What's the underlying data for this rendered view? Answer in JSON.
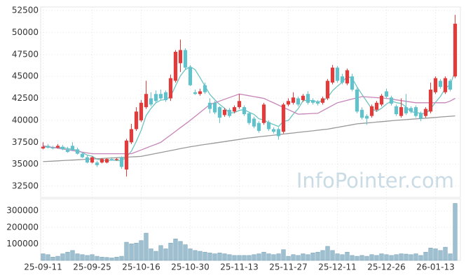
{
  "chart_data": {
    "type": "candlestick",
    "watermark": "InfoPointer.com",
    "categories": [
      "25-09-11",
      null,
      null,
      null,
      null,
      null,
      null,
      null,
      null,
      null,
      "25-09-25",
      null,
      null,
      null,
      null,
      null,
      null,
      null,
      null,
      null,
      "25-10-16",
      null,
      null,
      null,
      null,
      null,
      null,
      null,
      null,
      null,
      "25-10-30",
      null,
      null,
      null,
      null,
      null,
      null,
      null,
      null,
      null,
      "25-11-13",
      null,
      null,
      null,
      null,
      null,
      null,
      null,
      null,
      null,
      "25-11-27",
      null,
      null,
      null,
      null,
      null,
      null,
      null,
      null,
      null,
      "25-12-11",
      null,
      null,
      null,
      null,
      null,
      null,
      null,
      null,
      null,
      "25-12-26",
      null,
      null,
      null,
      null,
      null,
      null,
      null,
      null,
      null,
      "26-01-13",
      null,
      null,
      null,
      null
    ],
    "open": [
      36800,
      37100,
      36900,
      36900,
      37000,
      36700,
      37100,
      36700,
      36200,
      35800,
      35200,
      35200,
      35200,
      35200,
      35600,
      35500,
      35800,
      34400,
      37500,
      39000,
      40000,
      41500,
      42500,
      43000,
      43000,
      43200,
      42500,
      44500,
      46500,
      48000,
      46000,
      43200,
      43000,
      44000,
      42000,
      42000,
      41500,
      40600,
      41200,
      41000,
      41500,
      41500,
      40800,
      40200,
      39700,
      39700,
      39800,
      39000,
      39000,
      38700,
      41800,
      42000,
      42500,
      42300,
      43000,
      42300,
      42100,
      42000,
      42500,
      44300,
      46000,
      45000,
      44200,
      45000,
      43500,
      41200,
      40500,
      40500,
      41200,
      41800,
      43300,
      42600,
      41600,
      40500,
      41500,
      41400,
      41500,
      40800,
      40500,
      41000,
      43200,
      44500,
      43200,
      44500,
      45000
    ],
    "high": [
      37500,
      37300,
      37100,
      37300,
      37200,
      37000,
      37500,
      36900,
      36400,
      36000,
      35900,
      35400,
      35700,
      35700,
      35800,
      35700,
      35900,
      37900,
      39600,
      41500,
      42300,
      44500,
      43200,
      43400,
      43500,
      43400,
      45200,
      48000,
      49200,
      48200,
      46300,
      43500,
      43600,
      44300,
      42500,
      42200,
      41600,
      41400,
      41400,
      41700,
      43000,
      41700,
      41000,
      40400,
      39900,
      42000,
      40000,
      39200,
      39200,
      42000,
      42500,
      43200,
      42700,
      43000,
      43300,
      42500,
      42300,
      42700,
      44700,
      46300,
      46200,
      45300,
      45900,
      45300,
      43700,
      41500,
      40700,
      41800,
      42200,
      43000,
      43600,
      42800,
      41800,
      42500,
      43000,
      41600,
      41700,
      41000,
      41500,
      44300,
      45000,
      44700,
      45000,
      44700,
      52000
    ],
    "low": [
      36700,
      36800,
      36700,
      36800,
      36600,
      36300,
      36500,
      36100,
      35700,
      35100,
      35100,
      34700,
      35100,
      35100,
      35400,
      35400,
      34500,
      33600,
      37300,
      38800,
      39800,
      41300,
      41600,
      42000,
      42300,
      42100,
      42200,
      44300,
      45500,
      45800,
      43900,
      42900,
      42800,
      43000,
      40800,
      40700,
      39700,
      40400,
      40300,
      40800,
      41300,
      40500,
      39500,
      39100,
      38600,
      39500,
      38800,
      38500,
      37800,
      38500,
      41600,
      41800,
      41600,
      42100,
      41800,
      41800,
      41700,
      41800,
      42300,
      44100,
      44300,
      44100,
      44000,
      43300,
      40800,
      40100,
      39500,
      40300,
      41000,
      41600,
      42500,
      41700,
      40500,
      40300,
      40600,
      40800,
      40300,
      39900,
      40300,
      40800,
      43000,
      43600,
      43000,
      43300,
      44800
    ],
    "close": [
      37000,
      36900,
      36800,
      37100,
      36700,
      36400,
      36600,
      36200,
      35800,
      35200,
      35800,
      34900,
      35600,
      35600,
      35500,
      35600,
      34700,
      37700,
      39000,
      41000,
      42000,
      43000,
      41800,
      42200,
      42500,
      42300,
      44800,
      47800,
      48000,
      46000,
      44000,
      43000,
      43300,
      43200,
      41300,
      40900,
      40300,
      41200,
      40500,
      41500,
      42200,
      40700,
      39700,
      39300,
      38800,
      41800,
      39000,
      38700,
      38200,
      41800,
      42200,
      42600,
      41800,
      42800,
      42000,
      42000,
      41900,
      42500,
      44500,
      46000,
      44500,
      44300,
      45700,
      43500,
      41000,
      40300,
      40200,
      41600,
      42000,
      42800,
      42700,
      41900,
      40700,
      41500,
      40800,
      41000,
      40500,
      40200,
      41300,
      43500,
      44800,
      43800,
      44800,
      43500,
      51000
    ],
    "volume": [
      40000,
      35000,
      20000,
      25000,
      40000,
      50000,
      60000,
      40000,
      35000,
      30000,
      35000,
      25000,
      20000,
      18000,
      15000,
      20000,
      25000,
      110000,
      100000,
      105000,
      120000,
      165000,
      70000,
      55000,
      90000,
      70000,
      105000,
      130000,
      115000,
      95000,
      70000,
      60000,
      55000,
      50000,
      45000,
      40000,
      45000,
      40000,
      35000,
      30000,
      30000,
      30000,
      30000,
      35000,
      40000,
      50000,
      40000,
      35000,
      40000,
      65000,
      25000,
      35000,
      30000,
      40000,
      35000,
      45000,
      50000,
      60000,
      85000,
      60000,
      40000,
      35000,
      50000,
      30000,
      25000,
      30000,
      25000,
      35000,
      30000,
      40000,
      35000,
      30000,
      35000,
      40000,
      38000,
      35000,
      40000,
      30000,
      50000,
      75000,
      70000,
      60000,
      80000,
      40000,
      345000
    ],
    "series": [
      {
        "color": "#6cc3c0",
        "values": [
          37000,
          36950,
          36900,
          36900,
          36900,
          36780,
          36700,
          36600,
          36340,
          36040,
          35920,
          35580,
          35460,
          35420,
          35480,
          35440,
          35400,
          35820,
          36500,
          37600,
          38880,
          40540,
          41360,
          42000,
          42300,
          42360,
          42720,
          43920,
          45080,
          45780,
          46120,
          45760,
          44860,
          43900,
          42960,
          42340,
          41800,
          41380,
          40840,
          40880,
          41140,
          41220,
          40920,
          40680,
          40180,
          40060,
          39720,
          39520,
          39300,
          39900,
          39980,
          40700,
          41320,
          42240,
          42280,
          42240,
          42100,
          42240,
          42580,
          43380,
          43880,
          44360,
          45000,
          44800,
          43800,
          42960,
          42140,
          41320,
          41020,
          41380,
          41860,
          42200,
          42020,
          41920,
          41520,
          40980,
          40900,
          40800,
          40760,
          41300,
          42060,
          42720,
          43640,
          44080,
          45580
        ]
      },
      {
        "color": "#c784b8",
        "values": [
          37100,
          37010,
          36920,
          36830,
          36740,
          36650,
          36560,
          36470,
          36380,
          36290,
          36200,
          36200,
          36200,
          36200,
          36200,
          36200,
          36200,
          36200,
          36200,
          36420,
          36630,
          36850,
          37070,
          37280,
          37500,
          37920,
          38330,
          38750,
          39170,
          39580,
          40000,
          40450,
          40900,
          41350,
          41800,
          42000,
          42200,
          42400,
          42600,
          42800,
          43000,
          42900,
          42800,
          42700,
          42600,
          42500,
          42240,
          41990,
          41730,
          41470,
          41210,
          40960,
          40700,
          40730,
          40750,
          40780,
          40800,
          41100,
          41400,
          41700,
          42000,
          42140,
          42280,
          42420,
          42560,
          42700,
          42660,
          42620,
          42580,
          42540,
          42500,
          42420,
          42330,
          42250,
          42170,
          42080,
          42000,
          42000,
          42000,
          42000,
          42000,
          42000,
          42000,
          42200,
          42500
        ]
      },
      {
        "color": "#999999",
        "values": [
          35300,
          35330,
          35360,
          35390,
          35420,
          35450,
          35480,
          35510,
          35540,
          35570,
          35600,
          35630,
          35660,
          35690,
          35720,
          35750,
          35780,
          35810,
          35840,
          35870,
          35900,
          36010,
          36120,
          36230,
          36340,
          36450,
          36560,
          36670,
          36780,
          36890,
          37000,
          37080,
          37170,
          37250,
          37330,
          37420,
          37500,
          37580,
          37670,
          37750,
          37830,
          37920,
          38000,
          38060,
          38130,
          38190,
          38250,
          38310,
          38380,
          38440,
          38500,
          38560,
          38630,
          38690,
          38750,
          38810,
          38880,
          38940,
          39000,
          39100,
          39200,
          39300,
          39400,
          39500,
          39600,
          39650,
          39700,
          39750,
          39800,
          39850,
          39900,
          39950,
          40000,
          40040,
          40080,
          40130,
          40170,
          40210,
          40250,
          40290,
          40330,
          40380,
          40420,
          40460,
          40500
        ]
      }
    ],
    "up_color": "#e23b3b",
    "down_color": "#62c2cc",
    "volume_color": "#9dbfcf",
    "ylim": [
      31230,
      52900
    ],
    "yticks": [
      32500,
      35000,
      37500,
      40000,
      42500,
      45000,
      47500,
      50000,
      52500
    ],
    "y2lim": [
      0,
      373000
    ],
    "y2ticks": [
      100000,
      200000,
      300000
    ],
    "grid": true
  }
}
